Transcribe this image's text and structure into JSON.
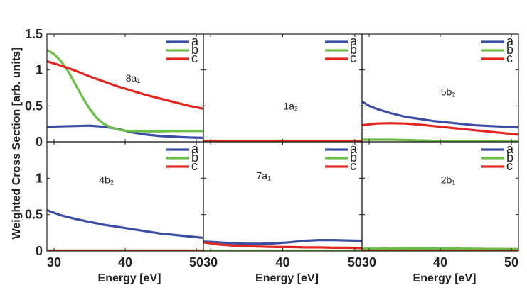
{
  "figure": {
    "ylabel": "Weighted Cross Section [arb. units]",
    "xlabel": "Energy [eV]",
    "colors": {
      "a": "#3b4ea6",
      "b": "#6cbf45",
      "c": "#e3241f"
    }
  },
  "chart_data": [
    {
      "type": "line",
      "panel": "top-left",
      "annotation": {
        "main": "8a",
        "sub": "1"
      },
      "xlim": [
        29,
        51
      ],
      "ylim": [
        0,
        1.5
      ],
      "x_ticks": [
        30,
        40,
        50
      ],
      "y_ticks": [
        0,
        0.5,
        1,
        1.5
      ],
      "y_tick_labels": [
        "0",
        "0.5",
        "1",
        "1.5"
      ],
      "grid": false,
      "legend": "top-right",
      "series": [
        {
          "name": "a",
          "x": [
            29,
            31,
            33,
            35,
            37,
            39,
            41,
            43,
            45,
            47,
            49,
            51
          ],
          "y": [
            0.21,
            0.215,
            0.22,
            0.225,
            0.21,
            0.18,
            0.13,
            0.1,
            0.08,
            0.07,
            0.06,
            0.055
          ]
        },
        {
          "name": "b",
          "x": [
            29,
            30,
            31,
            32,
            33,
            34,
            35,
            36,
            37,
            38,
            39,
            40,
            41,
            43,
            45,
            47,
            49,
            51
          ],
          "y": [
            1.28,
            1.22,
            1.12,
            0.98,
            0.8,
            0.62,
            0.46,
            0.33,
            0.25,
            0.2,
            0.17,
            0.155,
            0.15,
            0.145,
            0.145,
            0.15,
            0.15,
            0.15
          ]
        },
        {
          "name": "c",
          "x": [
            29,
            31,
            33,
            35,
            37,
            39,
            41,
            43,
            45,
            47,
            49,
            51
          ],
          "y": [
            1.12,
            1.06,
            0.99,
            0.91,
            0.84,
            0.77,
            0.71,
            0.65,
            0.6,
            0.55,
            0.5,
            0.46
          ]
        }
      ]
    },
    {
      "type": "line",
      "panel": "top-middle",
      "annotation": {
        "main": "1a",
        "sub": "2"
      },
      "xlim": [
        29,
        51
      ],
      "ylim": [
        0,
        1.5
      ],
      "x_ticks": [
        30,
        40,
        50
      ],
      "y_ticks": [
        0,
        0.5,
        1,
        1.5
      ],
      "grid": false,
      "legend": "top-right",
      "series": [
        {
          "name": "a",
          "x": [
            29,
            51
          ],
          "y": [
            0.01,
            0.01
          ]
        },
        {
          "name": "b",
          "x": [
            29,
            51
          ],
          "y": [
            0.015,
            0.015
          ]
        },
        {
          "name": "c",
          "x": [
            29,
            51
          ],
          "y": [
            0.005,
            0.005
          ]
        }
      ]
    },
    {
      "type": "line",
      "panel": "top-right",
      "annotation": {
        "main": "5b",
        "sub": "2"
      },
      "xlim": [
        29,
        51
      ],
      "ylim": [
        0,
        1.5
      ],
      "x_ticks": [
        30,
        40,
        50
      ],
      "y_ticks": [
        0,
        0.5,
        1,
        1.5
      ],
      "grid": false,
      "legend": "top-right",
      "series": [
        {
          "name": "a",
          "x": [
            29,
            30,
            31,
            33,
            35,
            37,
            39,
            41,
            43,
            45,
            47,
            49,
            51
          ],
          "y": [
            0.56,
            0.5,
            0.46,
            0.4,
            0.35,
            0.32,
            0.29,
            0.27,
            0.25,
            0.23,
            0.22,
            0.21,
            0.2
          ]
        },
        {
          "name": "b",
          "x": [
            29,
            33,
            37,
            41,
            45,
            51
          ],
          "y": [
            0.03,
            0.03,
            0.02,
            0.01,
            0.01,
            0.005
          ]
        },
        {
          "name": "c",
          "x": [
            29,
            31,
            33,
            35,
            37,
            39,
            41,
            43,
            45,
            47,
            49,
            51
          ],
          "y": [
            0.23,
            0.255,
            0.26,
            0.255,
            0.24,
            0.22,
            0.2,
            0.18,
            0.16,
            0.14,
            0.12,
            0.1
          ]
        }
      ]
    },
    {
      "type": "line",
      "panel": "bottom-left",
      "annotation": {
        "main": "4b",
        "sub": "2"
      },
      "xlim": [
        29,
        51
      ],
      "ylim": [
        0,
        1.5
      ],
      "x_ticks": [
        30,
        40,
        50
      ],
      "y_ticks": [
        0,
        0.5,
        1,
        1.5
      ],
      "y_tick_labels": [
        "0",
        "0.5",
        "1",
        ""
      ],
      "grid": false,
      "legend": "top-right",
      "series": [
        {
          "name": "a",
          "x": [
            29,
            31,
            33,
            35,
            37,
            39,
            41,
            43,
            45,
            47,
            49,
            51
          ],
          "y": [
            0.56,
            0.49,
            0.44,
            0.4,
            0.36,
            0.33,
            0.3,
            0.27,
            0.24,
            0.22,
            0.2,
            0.18
          ]
        },
        {
          "name": "b",
          "x": [
            29,
            51
          ],
          "y": [
            0.005,
            0.005
          ]
        },
        {
          "name": "c",
          "x": [
            29,
            51
          ],
          "y": [
            0.005,
            0.005
          ]
        }
      ]
    },
    {
      "type": "line",
      "panel": "bottom-middle",
      "annotation": {
        "main": "7a",
        "sub": "1"
      },
      "xlim": [
        29,
        51
      ],
      "ylim": [
        0,
        1.5
      ],
      "x_ticks": [
        30,
        40,
        50
      ],
      "y_ticks": [
        0,
        0.5,
        1,
        1.5
      ],
      "grid": false,
      "legend": "top-right",
      "series": [
        {
          "name": "a",
          "x": [
            29,
            31,
            33,
            35,
            37,
            39,
            41,
            43,
            45,
            47,
            49,
            51
          ],
          "y": [
            0.13,
            0.12,
            0.105,
            0.1,
            0.1,
            0.105,
            0.12,
            0.14,
            0.15,
            0.15,
            0.145,
            0.14
          ]
        },
        {
          "name": "b",
          "x": [
            29,
            51
          ],
          "y": [
            0.005,
            0.005
          ]
        },
        {
          "name": "c",
          "x": [
            29,
            31,
            33,
            35,
            37,
            39,
            41,
            43,
            45,
            47,
            49,
            51
          ],
          "y": [
            0.12,
            0.09,
            0.075,
            0.065,
            0.06,
            0.055,
            0.055,
            0.05,
            0.05,
            0.045,
            0.045,
            0.04
          ]
        }
      ]
    },
    {
      "type": "line",
      "panel": "bottom-right",
      "annotation": {
        "main": "2b",
        "sub": "1"
      },
      "xlim": [
        29,
        51
      ],
      "ylim": [
        0,
        1.5
      ],
      "x_ticks": [
        30,
        40,
        50
      ],
      "y_ticks": [
        0,
        0.5,
        1,
        1.5
      ],
      "grid": false,
      "legend": "top-right",
      "series": [
        {
          "name": "a",
          "x": [
            29,
            51
          ],
          "y": [
            0.01,
            0.01
          ]
        },
        {
          "name": "b",
          "x": [
            29,
            35,
            41,
            45,
            51
          ],
          "y": [
            0.03,
            0.035,
            0.035,
            0.03,
            0.025
          ]
        },
        {
          "name": "c",
          "x": [
            29,
            51
          ],
          "y": [
            0.005,
            0.005
          ]
        }
      ]
    }
  ]
}
